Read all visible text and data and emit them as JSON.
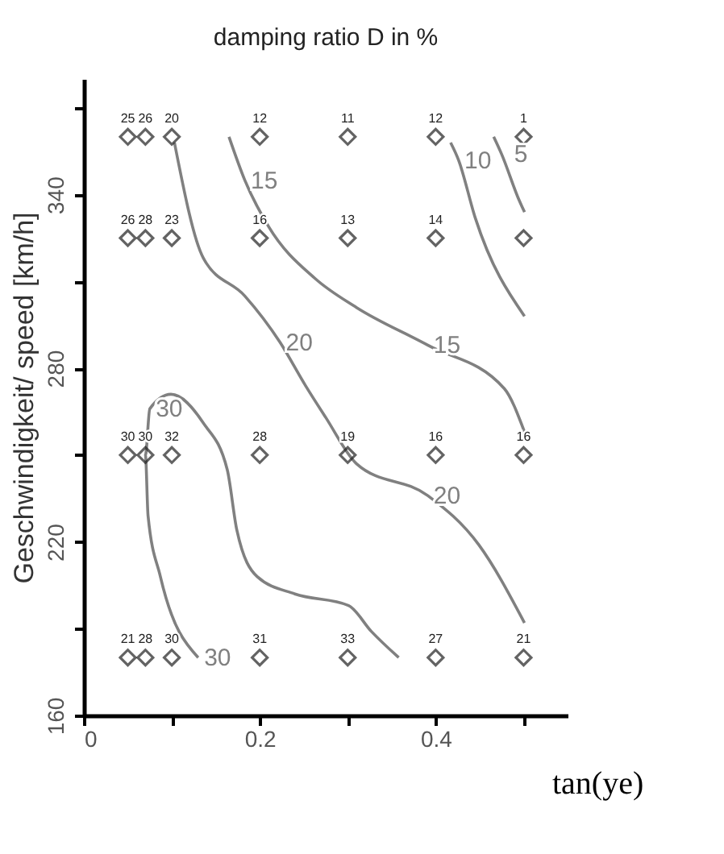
{
  "chart_data": {
    "type": "scatter",
    "title": "damping ratio D in %",
    "xlabel": "tan(ye)",
    "ylabel": "Geschwindigkeit/ speed   [km/h]",
    "xlim": [
      0,
      0.55
    ],
    "ylim": [
      160,
      380
    ],
    "xticks": [
      0,
      {
        "value": 0.1,
        "label": null
      },
      0.2,
      {
        "value": 0.3,
        "label": null
      },
      0.4,
      {
        "value": 0.5,
        "label": null
      }
    ],
    "yticks": [
      160,
      {
        "value": 190,
        "label": null
      },
      220,
      {
        "value": 250,
        "label": null
      },
      280,
      {
        "value": 310,
        "label": null
      },
      340,
      {
        "value": 370,
        "label": null
      }
    ],
    "series": [
      {
        "marker": "diamond",
        "color": "#222222",
        "x": [
          0.05,
          0.07,
          0.1,
          0.2,
          0.3,
          0.4,
          0.5,
          0.05,
          0.07,
          0.1,
          0.2,
          0.3,
          0.4,
          0.5,
          0.05,
          0.07,
          0.1,
          0.2,
          0.3,
          0.4,
          0.5,
          0.05,
          0.07,
          0.1,
          0.2,
          0.3,
          0.4,
          0.5
        ],
        "values": [
          360,
          360,
          360,
          360,
          360,
          360,
          360,
          325,
          325,
          325,
          325,
          325,
          325,
          325,
          250,
          250,
          250,
          250,
          250,
          250,
          250,
          180,
          180,
          180,
          180,
          180,
          180,
          180
        ]
      },
      {
        "type": "line",
        "color": "#808080",
        "x": [
          0.13,
          0.087,
          0.073,
          0.07,
          0.075,
          0.099,
          0.136,
          0.163,
          0.174,
          0.197,
          0.24,
          0.301,
          0.327,
          0.358
        ],
        "values": [
          180,
          208,
          229,
          250,
          266,
          271,
          261,
          245,
          224,
          208,
          202,
          198,
          189,
          180
        ]
      },
      {
        "type": "line",
        "color": "#808080",
        "x": [
          0.103,
          0.136,
          0.183,
          0.223,
          0.252,
          0.275,
          0.31,
          0.391,
          0.449,
          0.501
        ],
        "values": [
          358,
          318,
          305,
          289,
          274,
          263,
          247,
          236,
          219,
          192
        ]
      },
      {
        "type": "line",
        "color": "#808080",
        "x": [
          0.165,
          0.183,
          0.21,
          0.263,
          0.31,
          0.391,
          0.478,
          0.501
        ],
        "values": [
          360,
          345,
          329,
          311,
          301,
          288,
          273,
          258
        ]
      },
      {
        "type": "line",
        "color": "#808080",
        "x": [
          0.417,
          0.426,
          0.445,
          0.501
        ],
        "values": [
          358,
          352,
          332,
          298
        ]
      },
      {
        "type": "line",
        "color": "#808080",
        "x": [
          0.466,
          0.475,
          0.495,
          0.501
        ],
        "values": [
          360,
          354,
          338,
          334
        ]
      }
    ],
    "annotations": [
      {
        "text": "25",
        "x": 0.05,
        "y": 360
      },
      {
        "text": "26",
        "x": 0.07,
        "y": 360
      },
      {
        "text": "20",
        "x": 0.1,
        "y": 360
      },
      {
        "text": "12",
        "x": 0.2,
        "y": 360
      },
      {
        "text": "11",
        "x": 0.3,
        "y": 360
      },
      {
        "text": "12",
        "x": 0.4,
        "y": 360
      },
      {
        "text": "1",
        "x": 0.5,
        "y": 360
      },
      {
        "text": "26",
        "x": 0.05,
        "y": 325
      },
      {
        "text": "28",
        "x": 0.07,
        "y": 325
      },
      {
        "text": "23",
        "x": 0.1,
        "y": 325
      },
      {
        "text": "16",
        "x": 0.2,
        "y": 325
      },
      {
        "text": "13",
        "x": 0.3,
        "y": 325
      },
      {
        "text": "14",
        "x": 0.4,
        "y": 325
      },
      {
        "text": "30",
        "x": 0.05,
        "y": 250
      },
      {
        "text": "30",
        "x": 0.07,
        "y": 250
      },
      {
        "text": "32",
        "x": 0.1,
        "y": 250
      },
      {
        "text": "28",
        "x": 0.2,
        "y": 250
      },
      {
        "text": "19",
        "x": 0.3,
        "y": 250
      },
      {
        "text": "16",
        "x": 0.4,
        "y": 250
      },
      {
        "text": "16",
        "x": 0.5,
        "y": 250
      },
      {
        "text": "21",
        "x": 0.05,
        "y": 180
      },
      {
        "text": "28",
        "x": 0.07,
        "y": 180
      },
      {
        "text": "30",
        "x": 0.1,
        "y": 180
      },
      {
        "text": "31",
        "x": 0.2,
        "y": 180
      },
      {
        "text": "33",
        "x": 0.3,
        "y": 180
      },
      {
        "text": "27",
        "x": 0.4,
        "y": 180
      },
      {
        "text": "21",
        "x": 0.5,
        "y": 180
      },
      {
        "text": "15",
        "x": 0.183,
        "y": 345
      },
      {
        "text": "15",
        "x": 0.391,
        "y": 288
      },
      {
        "text": "20",
        "x": 0.223,
        "y": 289
      },
      {
        "text": "20",
        "x": 0.391,
        "y": 236
      },
      {
        "text": "30",
        "x": 0.075,
        "y": 266
      },
      {
        "text": "30",
        "x": 0.13,
        "y": 180
      },
      {
        "text": "10",
        "x": 0.426,
        "y": 352
      },
      {
        "text": "5",
        "x": 0.475,
        "y": 354
      }
    ]
  }
}
